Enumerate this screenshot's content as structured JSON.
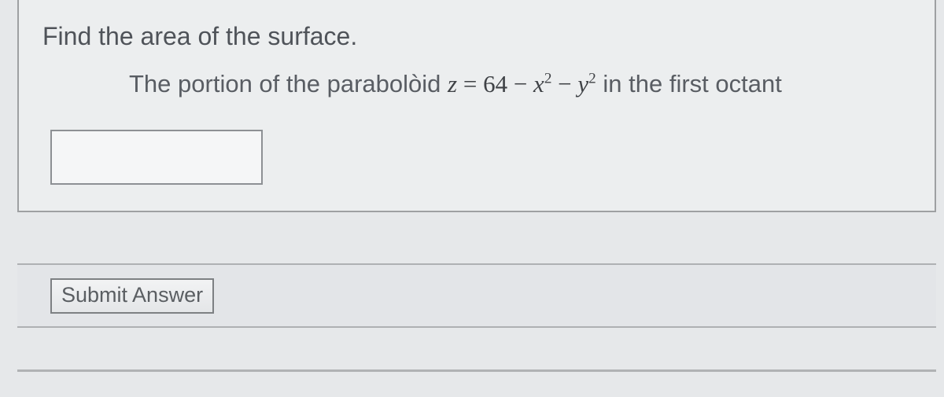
{
  "question": {
    "title": "Find the area of the surface.",
    "body_prefix": "The portion of the parabolòid ",
    "equation": {
      "lhs_var": "z",
      "eq": " = ",
      "const": "64",
      "minus1": " − ",
      "x_var": "x",
      "x_exp": "2",
      "minus2": " − ",
      "y_var": "y",
      "y_exp": "2"
    },
    "body_suffix": " in the first octant",
    "answer_value": "",
    "answer_placeholder": ""
  },
  "submit_label": "Submit Answer",
  "colors": {
    "page_bg": "#e6e8ea",
    "card_bg": "#eceeef",
    "border": "#9ea0a2",
    "text": "#4f5359"
  }
}
